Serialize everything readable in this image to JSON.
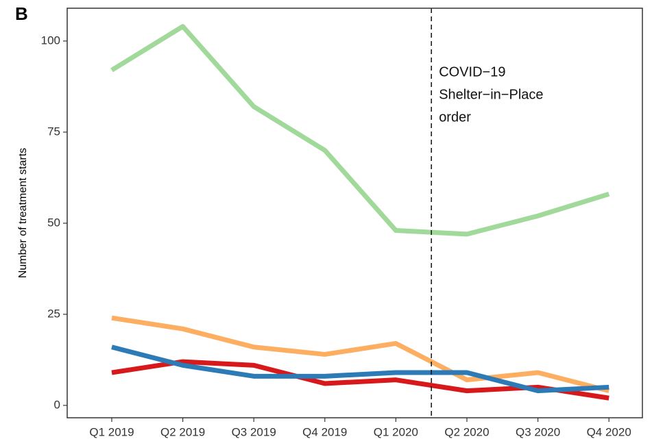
{
  "chart_data": {
    "type": "line",
    "panel_label": "B",
    "y_label": "Number of treatment starts",
    "categories": [
      "Q1 2019",
      "Q2 2019",
      "Q3 2019",
      "Q4 2019",
      "Q1 2020",
      "Q2 2020",
      "Q3 2020",
      "Q4 2020"
    ],
    "series": [
      {
        "color": "#a1d99b",
        "values": [
          92,
          104,
          82,
          70,
          48,
          47,
          52,
          58
        ]
      },
      {
        "color": "#fdae61",
        "values": [
          24,
          21,
          16,
          14,
          17,
          7,
          9,
          4
        ]
      },
      {
        "color": "#d7191c",
        "values": [
          9,
          12,
          11,
          6,
          7,
          4,
          5,
          2
        ]
      },
      {
        "color": "#2c7bb6",
        "values": [
          16,
          11,
          8,
          8,
          9,
          9,
          4,
          5
        ]
      }
    ],
    "ylim": [
      -3.4,
      109
    ],
    "yticks": [
      0,
      25,
      50,
      75,
      100
    ],
    "annotation": {
      "x": 4.5,
      "lines": [
        "COVID−19",
        "Shelter−in−Place",
        "order"
      ]
    }
  }
}
